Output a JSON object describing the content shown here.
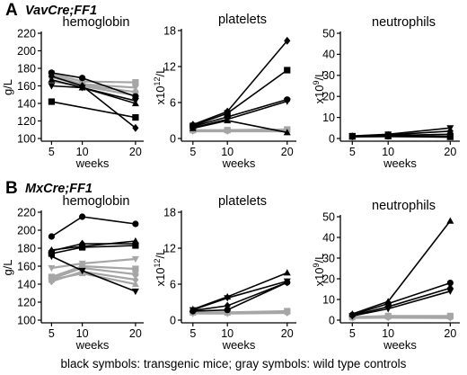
{
  "rows": [
    {
      "letter": "A",
      "title": "VavCre;FF1"
    },
    {
      "letter": "B",
      "title": "MxCre;FF1"
    }
  ],
  "caption": "black symbols: transgenic mice; gray symbols: wild type controls",
  "colors": {
    "transgenic": "#000000",
    "control": "#a6a6a6",
    "axis": "#000000"
  },
  "chart_data": [
    {
      "type": "line",
      "row": "A",
      "title": "hemoglobin",
      "ylabel": {
        "text": "g/L",
        "base": "",
        "sup": "",
        "unit": ""
      },
      "xlabel": "weeks",
      "x": [
        5,
        10,
        20
      ],
      "ylim": [
        100,
        220
      ],
      "yticks": [
        100,
        120,
        140,
        160,
        180,
        200,
        220
      ],
      "grid": false,
      "series": [
        {
          "group": "transgenic",
          "marker": "circle",
          "values": [
            175,
            169,
            148
          ]
        },
        {
          "group": "transgenic",
          "marker": "diamond",
          "values": [
            171,
            160,
            112
          ]
        },
        {
          "group": "transgenic",
          "marker": "tri-up",
          "values": [
            167,
            158,
            140
          ]
        },
        {
          "group": "transgenic",
          "marker": "tri-down",
          "values": [
            160,
            158,
            143
          ]
        },
        {
          "group": "transgenic",
          "marker": "square",
          "values": [
            142,
            null,
            124
          ]
        },
        {
          "group": "control",
          "marker": "square",
          "values": [
            174,
            165,
            164
          ]
        },
        {
          "group": "control",
          "marker": "tri-down",
          "values": [
            172,
            162,
            158
          ]
        },
        {
          "group": "control",
          "marker": "circle",
          "values": [
            170,
            161,
            153
          ]
        },
        {
          "group": "control",
          "marker": "diamond",
          "values": [
            165,
            160,
            149
          ]
        }
      ]
    },
    {
      "type": "line",
      "row": "A",
      "title": "platelets",
      "ylabel": {
        "text": "",
        "base": "x10",
        "sup": "12",
        "unit": "/L"
      },
      "xlabel": "weeks",
      "x": [
        5,
        10,
        20
      ],
      "ylim": [
        0,
        18
      ],
      "yticks": [
        0,
        6,
        12,
        18
      ],
      "grid": false,
      "series": [
        {
          "group": "transgenic",
          "marker": "diamond",
          "values": [
            2.3,
            4.5,
            16.3
          ]
        },
        {
          "group": "transgenic",
          "marker": "square",
          "values": [
            2.1,
            4.2,
            11.4
          ]
        },
        {
          "group": "transgenic",
          "marker": "circle",
          "values": [
            2.0,
            3.6,
            6.5
          ]
        },
        {
          "group": "transgenic",
          "marker": "tri-down",
          "values": [
            1.8,
            3.2,
            6.2
          ]
        },
        {
          "group": "transgenic",
          "marker": "tri-up",
          "values": [
            1.7,
            3.0,
            1.0
          ]
        },
        {
          "group": "control",
          "marker": "square",
          "values": [
            1.4,
            1.4,
            1.5
          ]
        },
        {
          "group": "control",
          "marker": "circle",
          "values": [
            1.3,
            1.3,
            1.3
          ]
        },
        {
          "group": "control",
          "marker": "tri-down",
          "values": [
            1.2,
            1.2,
            1.2
          ]
        }
      ]
    },
    {
      "type": "line",
      "row": "A",
      "title": "neutrophils",
      "ylabel": {
        "text": "",
        "base": "x10",
        "sup": "9",
        "unit": "/L"
      },
      "xlabel": "weeks",
      "x": [
        5,
        10,
        20
      ],
      "ylim": [
        0,
        50
      ],
      "yticks": [
        0,
        10,
        20,
        30,
        40,
        50
      ],
      "grid": false,
      "series": [
        {
          "group": "transgenic",
          "marker": "tri-down",
          "values": [
            1.2,
            2.0,
            5.0
          ]
        },
        {
          "group": "transgenic",
          "marker": "diamond",
          "values": [
            1.0,
            1.7,
            3.5
          ]
        },
        {
          "group": "transgenic",
          "marker": "circle",
          "values": [
            0.9,
            1.4,
            2.0
          ]
        },
        {
          "group": "transgenic",
          "marker": "square",
          "values": [
            1.1,
            1.2,
            1.0
          ]
        },
        {
          "group": "transgenic",
          "marker": "tri-up",
          "values": [
            0.8,
            1.0,
            0.6
          ]
        },
        {
          "group": "control",
          "marker": "square",
          "values": [
            1.0,
            1.1,
            1.1
          ]
        },
        {
          "group": "control",
          "marker": "circle",
          "values": [
            0.8,
            0.9,
            0.9
          ]
        }
      ]
    },
    {
      "type": "line",
      "row": "B",
      "title": "hemoglobin",
      "ylabel": {
        "text": "g/L",
        "base": "",
        "sup": "",
        "unit": ""
      },
      "xlabel": "weeks",
      "x": [
        5,
        10,
        20
      ],
      "ylim": [
        100,
        220
      ],
      "yticks": [
        100,
        120,
        140,
        160,
        180,
        200,
        220
      ],
      "grid": false,
      "series": [
        {
          "group": "transgenic",
          "marker": "circle",
          "values": [
            193,
            215,
            207
          ]
        },
        {
          "group": "transgenic",
          "marker": "diamond",
          "values": [
            177,
            185,
            185
          ]
        },
        {
          "group": "transgenic",
          "marker": "tri-up",
          "values": [
            178,
            182,
            188
          ]
        },
        {
          "group": "transgenic",
          "marker": "square",
          "values": [
            174,
            181,
            183
          ]
        },
        {
          "group": "transgenic",
          "marker": "tri-down",
          "values": [
            171,
            155,
            132
          ]
        },
        {
          "group": "control",
          "marker": "tri-down",
          "values": [
            158,
            163,
            168
          ]
        },
        {
          "group": "control",
          "marker": "square",
          "values": [
            148,
            160,
            157
          ]
        },
        {
          "group": "control",
          "marker": "circle",
          "values": [
            146,
            158,
            151
          ]
        },
        {
          "group": "control",
          "marker": "diamond",
          "values": [
            143,
            154,
            145
          ]
        },
        {
          "group": "control",
          "marker": "tri-up",
          "values": [
            145,
            152,
            140
          ]
        }
      ]
    },
    {
      "type": "line",
      "row": "B",
      "title": "platelets",
      "ylabel": {
        "text": "",
        "base": "x10",
        "sup": "12",
        "unit": "/L"
      },
      "xlabel": "weeks",
      "x": [
        5,
        10,
        20
      ],
      "ylim": [
        0,
        18
      ],
      "yticks": [
        0,
        6,
        12,
        18
      ],
      "grid": false,
      "series": [
        {
          "group": "transgenic",
          "marker": "tri-up",
          "values": [
            1.8,
            3.9,
            7.9
          ]
        },
        {
          "group": "transgenic",
          "marker": "tri-down",
          "values": [
            1.7,
            3.7,
            6.5
          ]
        },
        {
          "group": "transgenic",
          "marker": "diamond",
          "values": [
            1.6,
            2.4,
            6.3
          ]
        },
        {
          "group": "transgenic",
          "marker": "circle",
          "values": [
            1.5,
            1.7,
            6.3
          ]
        },
        {
          "group": "control",
          "marker": "square",
          "values": [
            1.3,
            1.3,
            1.5
          ]
        },
        {
          "group": "control",
          "marker": "circle",
          "values": [
            1.2,
            1.2,
            1.3
          ]
        },
        {
          "group": "control",
          "marker": "tri-down",
          "values": [
            1.1,
            1.1,
            1.2
          ]
        }
      ]
    },
    {
      "type": "line",
      "row": "B",
      "title": "neutrophils",
      "ylabel": {
        "text": "",
        "base": "x10",
        "sup": "9",
        "unit": "/L"
      },
      "xlabel": "weeks",
      "x": [
        5,
        10,
        20
      ],
      "ylim": [
        0,
        50
      ],
      "yticks": [
        0,
        10,
        20,
        30,
        40,
        50
      ],
      "grid": false,
      "series": [
        {
          "group": "transgenic",
          "marker": "tri-up",
          "values": [
            3.0,
            9.0,
            48.0
          ]
        },
        {
          "group": "transgenic",
          "marker": "circle",
          "values": [
            2.5,
            8.0,
            18.0
          ]
        },
        {
          "group": "transgenic",
          "marker": "diamond",
          "values": [
            2.2,
            6.5,
            15.5
          ]
        },
        {
          "group": "transgenic",
          "marker": "tri-down",
          "values": [
            2.0,
            5.5,
            14.0
          ]
        },
        {
          "group": "control",
          "marker": "square",
          "values": [
            1.5,
            2.0,
            2.0
          ]
        },
        {
          "group": "control",
          "marker": "circle",
          "values": [
            1.2,
            1.5,
            1.4
          ]
        },
        {
          "group": "control",
          "marker": "tri-down",
          "values": [
            1.0,
            1.2,
            1.0
          ]
        }
      ]
    }
  ]
}
